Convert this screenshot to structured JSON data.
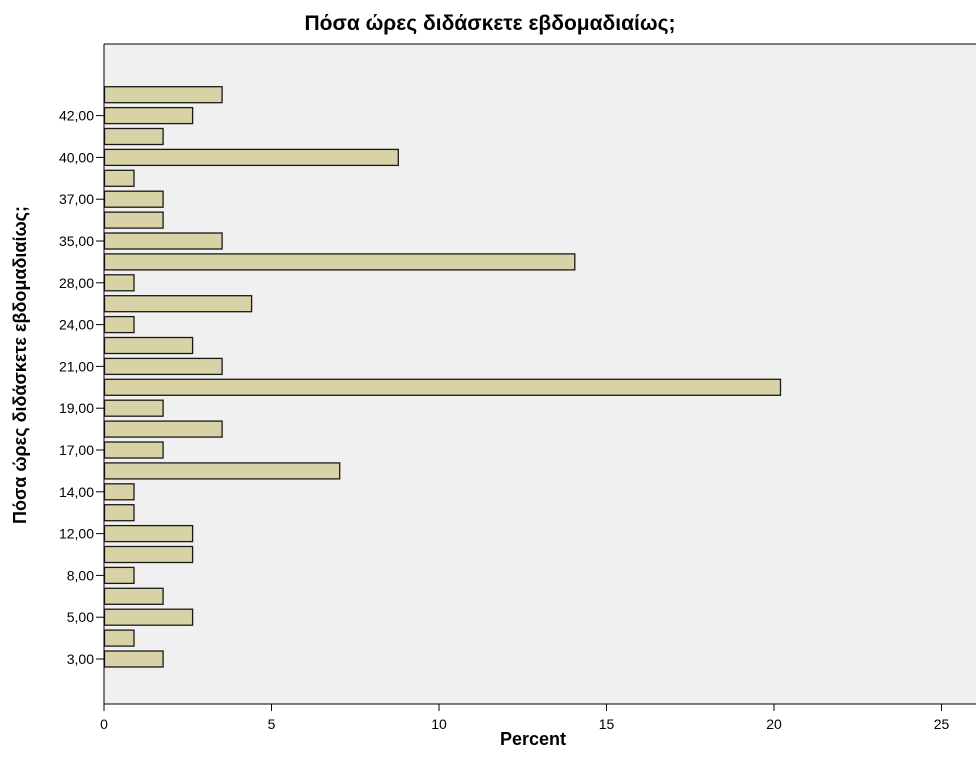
{
  "chart_data": {
    "type": "bar",
    "orientation": "horizontal",
    "title": "Πόσα ώρες διδάσκετε εβδομαδιαίως;",
    "xlabel": "Percent",
    "ylabel": "Πόσα ώρες διδάσκετε εβδομαδιαίως;",
    "xlim": [
      0,
      26
    ],
    "xticks": [
      0,
      5,
      10,
      15,
      20,
      25
    ],
    "yticks_shown": [
      "3,00",
      "5,00",
      "8,00",
      "12,00",
      "14,00",
      "17,00",
      "19,00",
      "21,00",
      "24,00",
      "28,00",
      "35,00",
      "37,00",
      "40,00",
      "42,00"
    ],
    "bars": [
      {
        "label": "3,00",
        "value": 1.75
      },
      {
        "label": "",
        "value": 0.88
      },
      {
        "label": "5,00",
        "value": 2.63
      },
      {
        "label": "",
        "value": 1.75
      },
      {
        "label": "8,00",
        "value": 0.88
      },
      {
        "label": "",
        "value": 2.63
      },
      {
        "label": "12,00",
        "value": 2.63
      },
      {
        "label": "",
        "value": 0.88
      },
      {
        "label": "14,00",
        "value": 0.88
      },
      {
        "label": "",
        "value": 7.02
      },
      {
        "label": "17,00",
        "value": 1.75
      },
      {
        "label": "",
        "value": 3.51
      },
      {
        "label": "19,00",
        "value": 1.75
      },
      {
        "label": "",
        "value": 20.18
      },
      {
        "label": "21,00",
        "value": 3.51
      },
      {
        "label": "",
        "value": 2.63
      },
      {
        "label": "24,00",
        "value": 0.88
      },
      {
        "label": "",
        "value": 4.39
      },
      {
        "label": "28,00",
        "value": 0.88
      },
      {
        "label": "",
        "value": 14.04
      },
      {
        "label": "35,00",
        "value": 3.51
      },
      {
        "label": "",
        "value": 1.75
      },
      {
        "label": "37,00",
        "value": 1.75
      },
      {
        "label": "",
        "value": 0.88
      },
      {
        "label": "40,00",
        "value": 8.77
      },
      {
        "label": "",
        "value": 1.75
      },
      {
        "label": "42,00",
        "value": 2.63
      },
      {
        "label": "",
        "value": 3.51
      }
    ],
    "grid": false,
    "colors": {
      "bar_fill": "#d8d3a6",
      "bar_stroke": "#1a1a1a",
      "plot_bg": "#f0f0f0",
      "axis": "#000000"
    }
  }
}
